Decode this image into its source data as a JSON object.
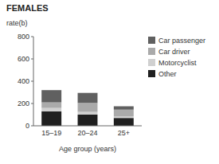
{
  "chart_data": {
    "type": "bar",
    "stacked": true,
    "title": "FEMALES",
    "ylabel": "rate(b)",
    "xlabel": "Age group (years)",
    "categories": [
      "15–19",
      "20–24",
      "25+"
    ],
    "series": [
      {
        "name": "Other",
        "color": "#202020",
        "values": [
          130,
          100,
          70
        ]
      },
      {
        "name": "Motorcyclist",
        "color": "#d0d0d0",
        "values": [
          30,
          25,
          15
        ]
      },
      {
        "name": "Car driver",
        "color": "#aaaaaa",
        "values": [
          50,
          80,
          60
        ]
      },
      {
        "name": "Car passenger",
        "color": "#606060",
        "values": [
          110,
          90,
          30
        ]
      }
    ],
    "ylim": [
      0,
      800
    ],
    "yticks": [
      0,
      200,
      400,
      600,
      800
    ],
    "grid": false,
    "legend": "right"
  }
}
